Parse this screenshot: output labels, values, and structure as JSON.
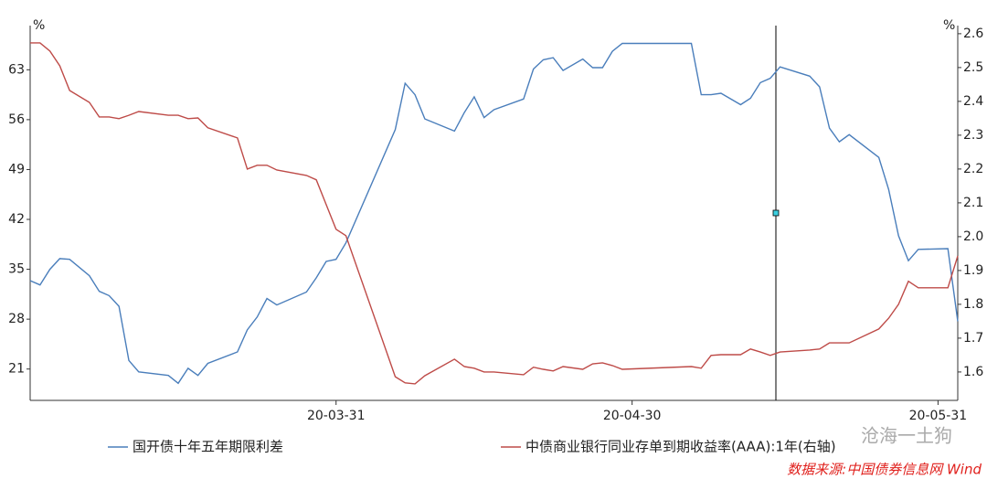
{
  "chart_data": {
    "type": "line",
    "ylabel": "%",
    "y2label": "%",
    "x": [
      "20-02-29",
      "20-03-01",
      "20-03-02",
      "20-03-03",
      "20-03-04",
      "20-03-06",
      "20-03-07",
      "20-03-08",
      "20-03-09",
      "20-03-10",
      "20-03-11",
      "20-03-14",
      "20-03-15",
      "20-03-16",
      "20-03-17",
      "20-03-18",
      "20-03-21",
      "20-03-22",
      "20-03-23",
      "20-03-24",
      "20-03-25",
      "20-03-28",
      "20-03-29",
      "20-03-30",
      "20-03-31",
      "20-04-01",
      "20-04-06",
      "20-04-07",
      "20-04-08",
      "20-04-09",
      "20-04-12",
      "20-04-13",
      "20-04-14",
      "20-04-15",
      "20-04-16",
      "20-04-19",
      "20-04-20",
      "20-04-21",
      "20-04-22",
      "20-04-23",
      "20-04-25",
      "20-04-26",
      "20-04-27",
      "20-04-28",
      "20-04-29",
      "20-05-06",
      "20-05-07",
      "20-05-08",
      "20-05-09",
      "20-05-11",
      "20-05-12",
      "20-05-13",
      "20-05-14",
      "20-05-15",
      "20-05-18",
      "20-05-19",
      "20-05-20",
      "20-05-21",
      "20-05-22",
      "20-05-25",
      "20-05-26",
      "20-05-27",
      "20-05-28",
      "20-05-29",
      "20-06-01",
      "20-06-02"
    ],
    "series": [
      {
        "name": "国开债十年五年期限利差",
        "color": "#4a7ebb",
        "values": [
          33.4,
          32.8,
          35.0,
          36.5,
          36.4,
          34.1,
          31.9,
          31.3,
          29.8,
          22.2,
          20.6,
          20.1,
          19.0,
          21.1,
          20.1,
          21.8,
          23.4,
          26.5,
          28.3,
          30.9,
          30.0,
          31.8,
          33.8,
          36.1,
          36.4,
          38.7,
          54.6,
          61.1,
          59.5,
          56.1,
          54.4,
          57.0,
          59.2,
          56.3,
          57.4,
          58.9,
          63.1,
          64.4,
          64.7,
          62.9,
          64.5,
          63.3,
          63.3,
          65.6,
          66.7,
          66.7,
          59.5,
          59.5,
          59.7,
          58.1,
          59.0,
          61.2,
          61.8,
          63.4,
          62.1,
          60.6,
          54.8,
          52.9,
          53.9,
          50.7,
          46.2,
          39.7,
          36.2,
          37.8,
          37.9,
          27.7
        ]
      },
      {
        "name": "中债商业银行同业存单到期收益率(AAA):1年(右轴)",
        "color": "#be4b48",
        "axis": "y2",
        "values": [
          2.573,
          2.573,
          2.549,
          2.505,
          2.432,
          2.397,
          2.354,
          2.354,
          2.349,
          2.359,
          2.37,
          2.359,
          2.359,
          2.349,
          2.351,
          2.322,
          2.292,
          2.2,
          2.211,
          2.211,
          2.197,
          2.181,
          2.168,
          2.095,
          2.022,
          2.003,
          1.586,
          1.568,
          1.565,
          1.589,
          1.638,
          1.616,
          1.611,
          1.6,
          1.6,
          1.592,
          1.614,
          1.608,
          1.603,
          1.616,
          1.608,
          1.624,
          1.627,
          1.619,
          1.608,
          1.616,
          1.611,
          1.649,
          1.651,
          1.651,
          1.668,
          1.659,
          1.649,
          1.659,
          1.665,
          1.668,
          1.686,
          1.686,
          1.686,
          1.727,
          1.759,
          1.8,
          1.868,
          1.849,
          1.849,
          1.943
        ]
      }
    ],
    "xlim": [
      "20-02-29",
      "20-06-02"
    ],
    "xticks": [
      "20-03-31",
      "20-04-30",
      "20-05-31"
    ],
    "ylim": [
      16.6,
      69.2
    ],
    "yticks": [
      21,
      28,
      35,
      42,
      49,
      56,
      63
    ],
    "y2lim": [
      1.516,
      2.624
    ],
    "y2ticks": [
      1.6,
      1.7,
      1.8,
      1.9,
      {
        "value": 2.0,
        "label": "2.0"
      },
      2.1,
      2.2,
      2.3,
      2.4,
      2.5,
      2.6
    ],
    "grid": false,
    "watermark": "沧海一土狗",
    "source": "数据来源:中国债券信息网 Wind"
  }
}
